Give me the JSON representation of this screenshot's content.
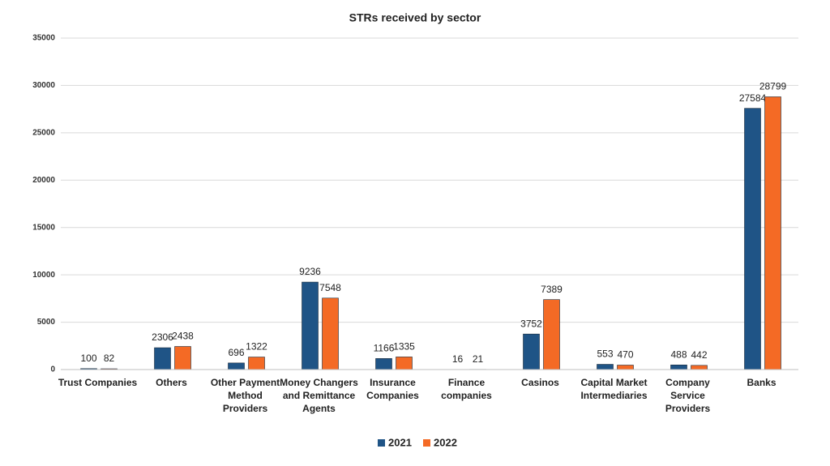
{
  "chart_data": {
    "type": "bar",
    "title": "STRs received by sector",
    "categories": [
      "Trust Companies",
      "Others",
      "Other Payment Method Providers",
      "Money Changers and Remittance Agents",
      "Insurance Companies",
      "Finance companies",
      "Casinos",
      "Capital Market Intermediaries",
      "Company Service Providers",
      "Banks"
    ],
    "series": [
      {
        "name": "2021",
        "color": "#1f5486",
        "values": [
          100,
          2306,
          696,
          9236,
          1166,
          16,
          3752,
          553,
          488,
          27584
        ]
      },
      {
        "name": "2022",
        "color": "#f46a25",
        "values": [
          82,
          2438,
          1322,
          7548,
          1335,
          21,
          7389,
          470,
          442,
          28799
        ]
      }
    ],
    "ylim": [
      0,
      35000
    ],
    "yticks": [
      0,
      5000,
      10000,
      15000,
      20000,
      25000,
      30000,
      35000
    ],
    "grid": true
  }
}
